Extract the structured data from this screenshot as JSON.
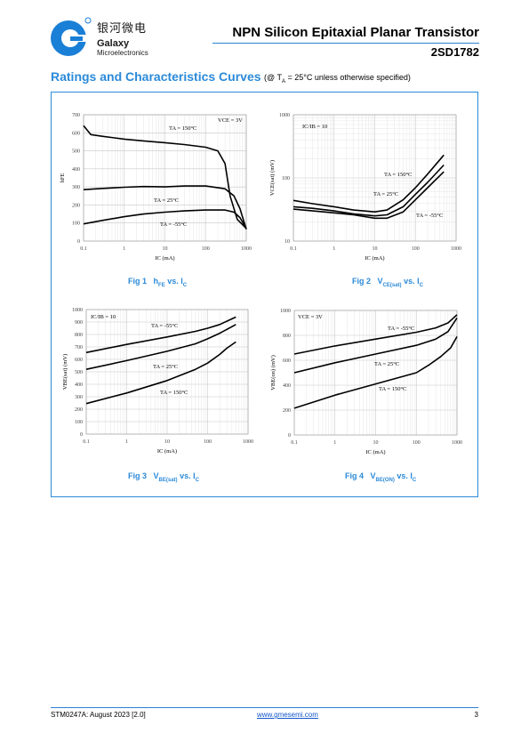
{
  "header": {
    "logo_cn": "银河微电",
    "logo_name": "Galaxy",
    "logo_sub": "Microelectronics",
    "title": "NPN Silicon Epitaxial Planar Transistor",
    "part_number": "2SD1782"
  },
  "section": {
    "title": "Ratings and Characteristics Curves",
    "condition": "(@ T",
    "condition_sub": "A",
    "condition_rest": " = 25°C unless otherwise specified)"
  },
  "colors": {
    "accent": "#2b8ad8",
    "rule": "#2b7fd4"
  },
  "chart_data": [
    {
      "id": "fig1",
      "type": "line",
      "caption": "Fig 1   hFE vs. IC",
      "x_scale": "log",
      "xlim": [
        0.1,
        1000
      ],
      "ylim": [
        0,
        700
      ],
      "x_ticks": [
        "0.1",
        "1",
        "10",
        "100",
        "1000"
      ],
      "y_ticks": [
        "0",
        "100",
        "200",
        "300",
        "400",
        "500",
        "600",
        "700"
      ],
      "xlabel": "IC (mA)",
      "ylabel": "hFE",
      "annotation": "VCE = 3V",
      "series": [
        {
          "name": "TA = 150°C",
          "x": [
            0.1,
            0.15,
            0.3,
            1,
            3,
            10,
            30,
            100,
            200,
            300,
            400,
            600,
            1000
          ],
          "y": [
            640,
            590,
            580,
            565,
            555,
            545,
            535,
            520,
            500,
            430,
            250,
            120,
            70
          ]
        },
        {
          "name": "TA = 25°C",
          "x": [
            0.1,
            0.3,
            1,
            3,
            10,
            30,
            100,
            300,
            500,
            700,
            1000
          ],
          "y": [
            285,
            292,
            298,
            302,
            300,
            305,
            305,
            290,
            250,
            180,
            65
          ]
        },
        {
          "name": "TA = -55°C",
          "x": [
            0.1,
            0.3,
            1,
            3,
            10,
            30,
            100,
            300,
            500,
            700,
            1000
          ],
          "y": [
            95,
            115,
            135,
            150,
            160,
            167,
            172,
            172,
            160,
            130,
            70
          ]
        }
      ]
    },
    {
      "id": "fig2",
      "type": "line",
      "caption": "Fig 2   VCE(sat) vs. IC",
      "x_scale": "log",
      "xlim": [
        0.1,
        1000
      ],
      "y_scale": "log",
      "ylim": [
        10,
        1000
      ],
      "x_ticks": [
        "0.1",
        "1",
        "10",
        "100",
        "1000"
      ],
      "y_ticks": [
        "10",
        "100",
        "1000"
      ],
      "xlabel": "IC (mA)",
      "ylabel": "VCE(sat) (mV)",
      "annotation": "IC/IB = 10",
      "series": [
        {
          "name": "TA = 150°C",
          "x": [
            0.1,
            0.3,
            1,
            3,
            10,
            20,
            50,
            100,
            200,
            500
          ],
          "y": [
            44,
            39,
            35,
            31,
            29,
            31,
            45,
            70,
            115,
            230
          ]
        },
        {
          "name": "TA = 25°C",
          "x": [
            0.1,
            0.3,
            1,
            3,
            10,
            20,
            50,
            100,
            200,
            500
          ],
          "y": [
            35,
            33,
            30,
            27,
            25,
            26,
            35,
            55,
            85,
            160
          ]
        },
        {
          "name": "TA = -55°C",
          "x": [
            0.1,
            0.3,
            1,
            3,
            10,
            20,
            50,
            100,
            200,
            500
          ],
          "y": [
            32,
            30,
            28,
            26,
            23,
            23,
            29,
            45,
            70,
            125
          ]
        }
      ]
    },
    {
      "id": "fig3",
      "type": "line",
      "caption": "Fig 3   VBE(sat) vs. IC",
      "x_scale": "log",
      "xlim": [
        0.1,
        1000
      ],
      "ylim": [
        0,
        1000
      ],
      "x_ticks": [
        "0.1",
        "1",
        "10",
        "100",
        "1000"
      ],
      "y_ticks": [
        "0",
        "100",
        "200",
        "300",
        "400",
        "500",
        "600",
        "700",
        "800",
        "900",
        "1000"
      ],
      "xlabel": "IC (mA)",
      "ylabel": "VBE(sat) (mV)",
      "annotation": "IC/IB = 10",
      "series": [
        {
          "name": "TA = -55°C",
          "x": [
            0.1,
            1,
            10,
            50,
            100,
            200,
            500
          ],
          "y": [
            655,
            720,
            780,
            825,
            850,
            880,
            940
          ]
        },
        {
          "name": "TA = 25°C",
          "x": [
            0.1,
            1,
            10,
            50,
            100,
            200,
            500
          ],
          "y": [
            520,
            590,
            665,
            725,
            765,
            810,
            880
          ]
        },
        {
          "name": "TA = 150°C",
          "x": [
            0.1,
            1,
            10,
            50,
            100,
            200,
            300,
            500
          ],
          "y": [
            245,
            330,
            430,
            520,
            570,
            640,
            690,
            740
          ]
        }
      ]
    },
    {
      "id": "fig4",
      "type": "line",
      "caption": "Fig 4   VBE(ON) vs. IC",
      "x_scale": "log",
      "xlim": [
        0.1,
        1000
      ],
      "ylim": [
        0,
        1000
      ],
      "x_ticks": [
        "0.1",
        "1",
        "10",
        "100",
        "1000"
      ],
      "y_ticks": [
        "0",
        "200",
        "400",
        "600",
        "800",
        "1000"
      ],
      "xlabel": "IC (mA)",
      "ylabel": "VBE(on) (mV)",
      "annotation": "VCE = 3V",
      "series": [
        {
          "name": "TA = -55°C",
          "x": [
            0.1,
            1,
            10,
            100,
            300,
            600,
            1000
          ],
          "y": [
            650,
            715,
            770,
            825,
            860,
            900,
            965
          ]
        },
        {
          "name": "TA = 25°C",
          "x": [
            0.1,
            1,
            10,
            100,
            300,
            600,
            1000
          ],
          "y": [
            500,
            580,
            650,
            720,
            770,
            830,
            940
          ]
        },
        {
          "name": "TA = 150°C",
          "x": [
            0.1,
            1,
            10,
            100,
            200,
            400,
            700,
            1000
          ],
          "y": [
            215,
            320,
            410,
            500,
            560,
            630,
            700,
            790
          ]
        }
      ]
    }
  ],
  "captions": {
    "fig1_prefix": "Fig 1",
    "fig1_main": "h",
    "fig1_sub": "FE",
    "fig1_rest": " vs. I",
    "fig1_sub2": "C",
    "fig2_prefix": "Fig 2",
    "fig2_main": "V",
    "fig2_sub": "CE(sat)",
    "fig2_rest": " vs. I",
    "fig2_sub2": "C",
    "fig3_prefix": "Fig 3",
    "fig3_main": "V",
    "fig3_sub": "BE(sat)",
    "fig3_rest": " vs. I",
    "fig3_sub2": "C",
    "fig4_prefix": "Fig 4",
    "fig4_main": "V",
    "fig4_sub": "BE(ON)",
    "fig4_rest": " vs. I",
    "fig4_sub2": "C"
  },
  "footer": {
    "doc_id": "STM0247A: August 2023 [2.0]",
    "link": "www.gmesemi.com",
    "page": "3"
  }
}
